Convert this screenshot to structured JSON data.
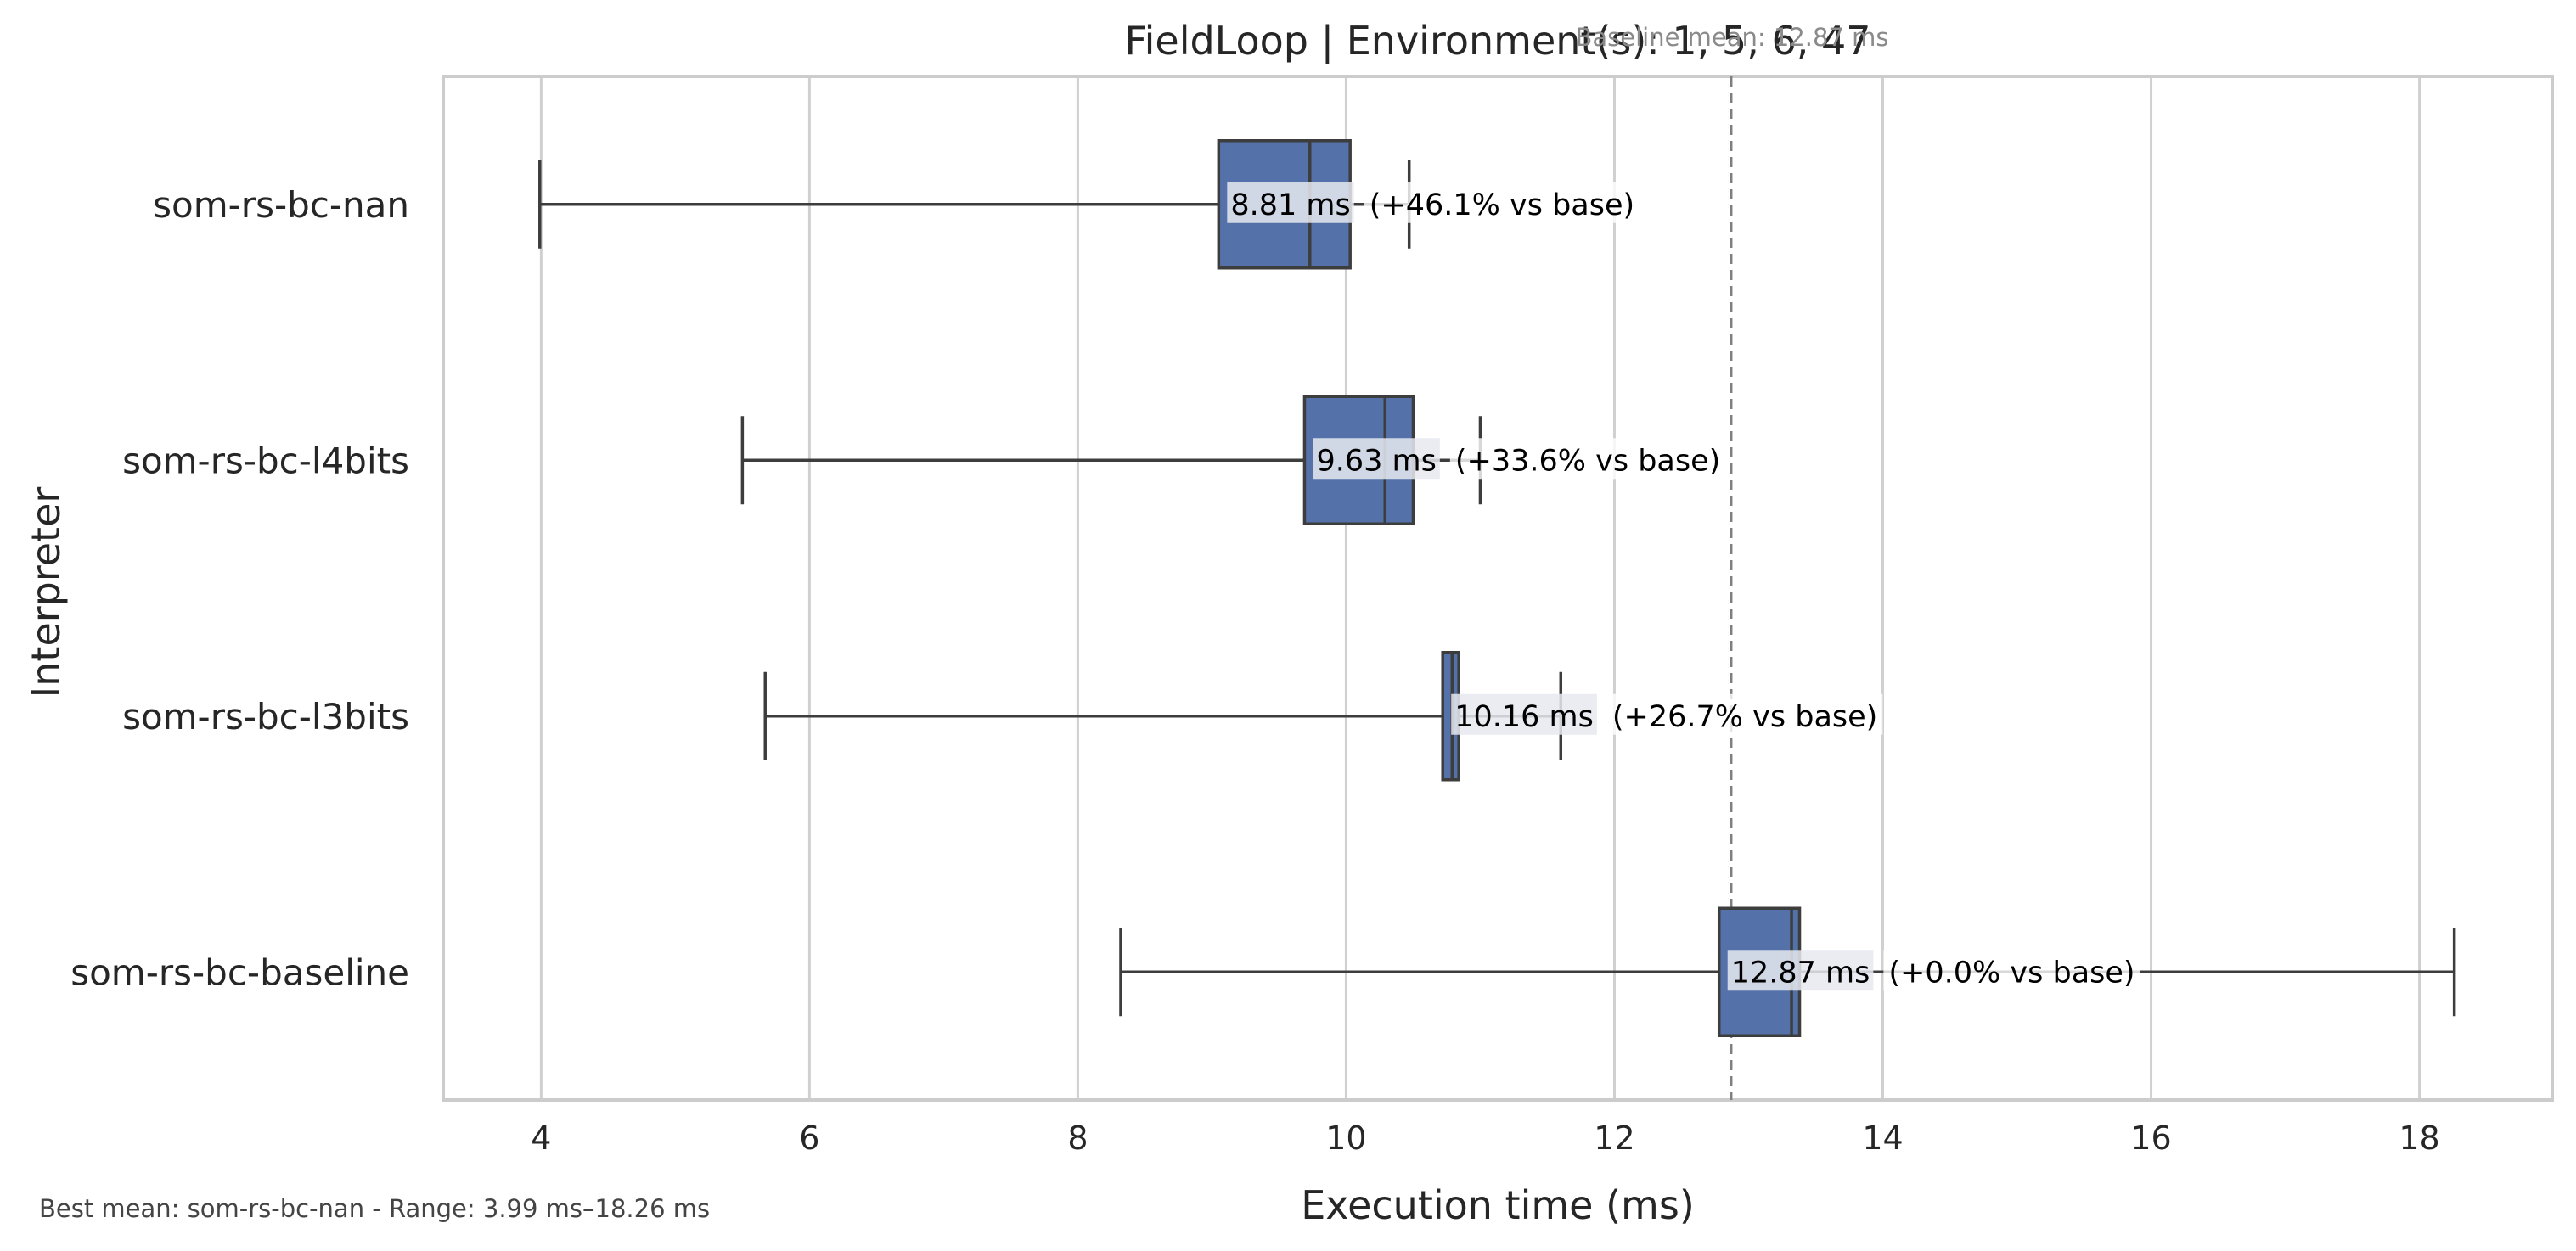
{
  "chart_data": {
    "type": "box",
    "title": "FieldLoop | Environment(s): 1, 5, 6, 47",
    "xlabel": "Execution time (ms)",
    "ylabel": "Interpreter",
    "xlim": [
      3.27,
      18.99
    ],
    "xticks": [
      4,
      6,
      8,
      10,
      12,
      14,
      16,
      18
    ],
    "grid": "vertical",
    "categories": [
      "som-rs-bc-nan",
      "som-rs-bc-l4bits",
      "som-rs-bc-l3bits",
      "som-rs-bc-baseline"
    ],
    "boxes": [
      {
        "name": "som-rs-bc-nan",
        "whisker_low": 3.99,
        "q1": 9.05,
        "median": 9.73,
        "q3": 10.03,
        "whisker_high": 10.47,
        "mean_label": "8.81 ms",
        "delta_label": "(+46.1% vs base)"
      },
      {
        "name": "som-rs-bc-l4bits",
        "whisker_low": 5.5,
        "q1": 9.69,
        "median": 10.29,
        "q3": 10.5,
        "whisker_high": 11.0,
        "mean_label": "9.63 ms",
        "delta_label": "(+33.6% vs base)"
      },
      {
        "name": "som-rs-bc-l3bits",
        "whisker_low": 5.67,
        "q1": 10.72,
        "median": 10.79,
        "q3": 10.84,
        "whisker_high": 11.6,
        "mean_label": "10.16 ms",
        "delta_label": "(+26.7% vs base)"
      },
      {
        "name": "som-rs-bc-baseline",
        "whisker_low": 8.32,
        "q1": 12.78,
        "median": 13.32,
        "q3": 13.38,
        "whisker_high": 18.26,
        "mean_label": "12.87 ms",
        "delta_label": "(+0.0% vs base)"
      }
    ],
    "baseline": {
      "value": 12.87,
      "label": "Baseline mean: 12.87 ms"
    },
    "footer": "Best mean: som-rs-bc-nan - Range: 3.99 ms–18.26 ms",
    "colors": {
      "box": "#5472a9",
      "line": "#3d3d3d",
      "grid": "#d0d0d0",
      "frame": "#cccccc",
      "baseline": "#7f7f7f",
      "label_bg": "#e6e9f0"
    }
  }
}
